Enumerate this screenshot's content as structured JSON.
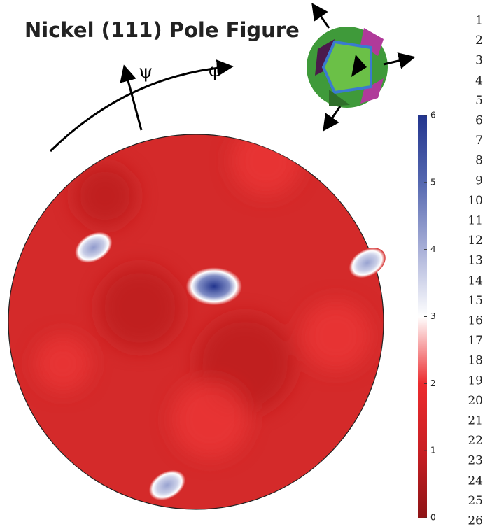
{
  "chart_data": {
    "type": "pole-figure",
    "title": "Nickel (111) Pole Figure",
    "psi_label": "ψ",
    "phi_label": "φ",
    "background_color": "#d42a2a",
    "peaks": {
      "psi": [
        24,
        68,
        88,
        83
      ],
      "phi": [
        63,
        144,
        19,
        260
      ],
      "intensity": [
        6,
        4.3,
        4.2,
        4.2
      ]
    },
    "colorbar": {
      "ylim": [
        0,
        6
      ],
      "yticks": [
        0,
        1,
        2,
        3,
        4,
        5,
        6
      ],
      "colormap": [
        "#8e1416",
        "#c91f24",
        "#ec2b2e",
        "#ffffff",
        "#a9b0d8",
        "#5568b0",
        "#23358e"
      ]
    },
    "line_numbers": [
      "1",
      "2",
      "3",
      "4",
      "5",
      "6",
      "7",
      "8",
      "9",
      "10",
      "11",
      "12",
      "13",
      "14",
      "15",
      "16",
      "17",
      "18",
      "19",
      "20",
      "21",
      "22",
      "23",
      "24",
      "25",
      "26"
    ]
  }
}
